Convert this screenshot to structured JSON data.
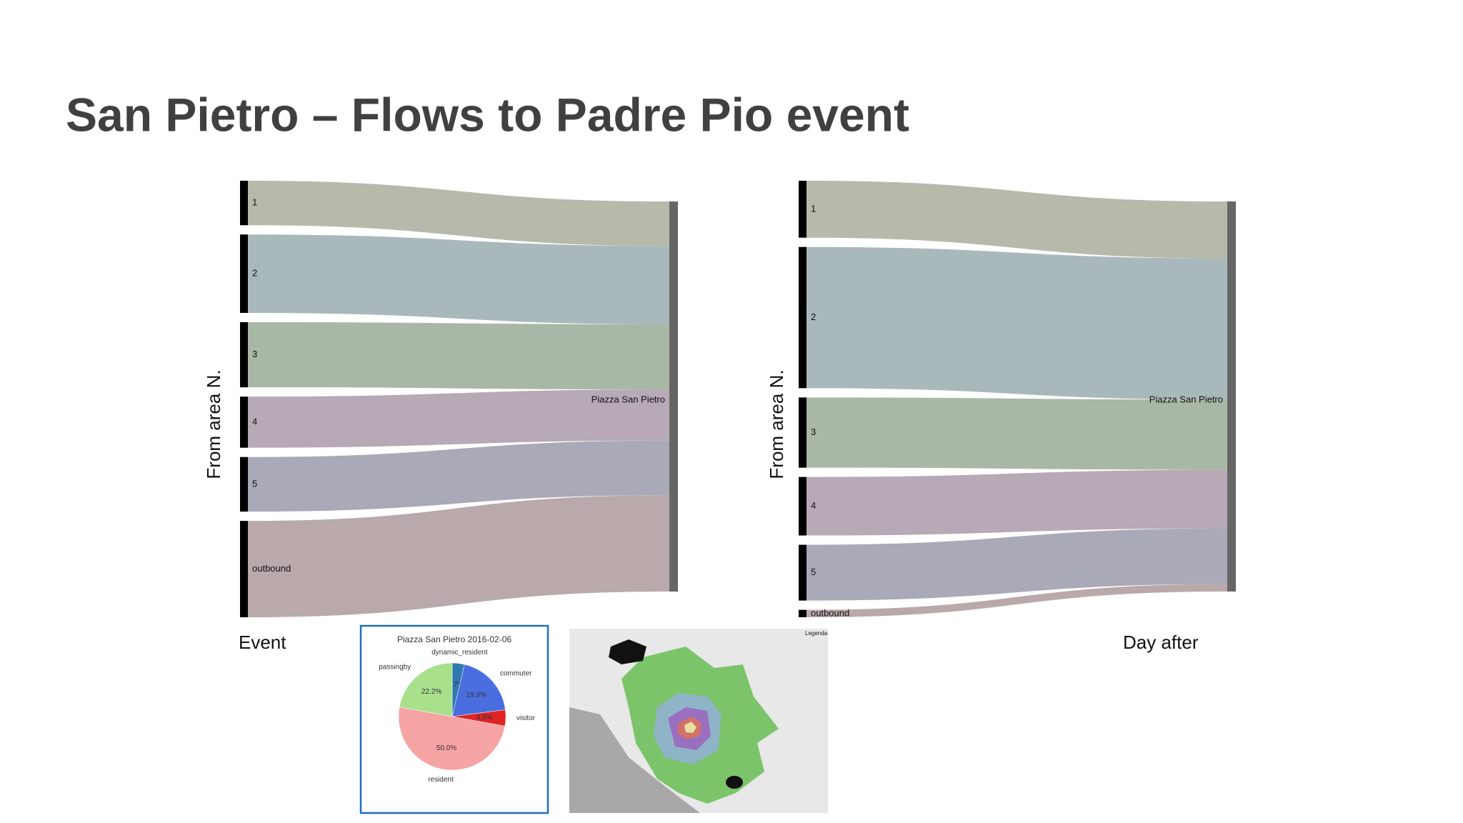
{
  "title": "San Pietro – Flows to Padre Pio event",
  "chart_data": [
    {
      "type": "sankey",
      "y_label": "From area N.",
      "x_label": "Event",
      "target": "Piazza San Pietro",
      "categories": [
        "1",
        "2",
        "3",
        "4",
        "5",
        "outbound"
      ],
      "values": [
        11.4,
        20.1,
        16.7,
        13.1,
        14.0,
        24.7
      ],
      "colors": [
        "#b7b9aa",
        "#a9b8bb",
        "#a9b8a6",
        "#b7a9b5",
        "#a9a9b8",
        "#b9a9aa"
      ]
    },
    {
      "type": "sankey",
      "y_label": "From area N.",
      "x_label": "Day after",
      "target": "Piazza San Pietro",
      "categories": [
        "1",
        "2",
        "3",
        "4",
        "5",
        "outbound"
      ],
      "values": [
        14.6,
        36.2,
        18.0,
        15.0,
        14.3,
        1.9
      ],
      "colors": [
        "#b7b9aa",
        "#a9b8bb",
        "#a9b8a6",
        "#b7a9b5",
        "#a9a9b8",
        "#b9a9aa"
      ]
    },
    {
      "type": "pie",
      "title": "Piazza San Pietro 2016-02-06",
      "categories": [
        "dynamic_resident",
        "commuter",
        "visitor",
        "resident",
        "passingby"
      ],
      "values": [
        3.7,
        19.3,
        4.9,
        50.0,
        22.2
      ],
      "value_labels": [
        "3.7%",
        "19.3%",
        "4.9%",
        "50.0%",
        "22.2%"
      ],
      "colors": [
        "#2f78b0",
        "#4a6ee0",
        "#e02424",
        "#f5a3a3",
        "#a8e08c"
      ]
    }
  ],
  "map": {
    "legend_title": "Legenda"
  }
}
